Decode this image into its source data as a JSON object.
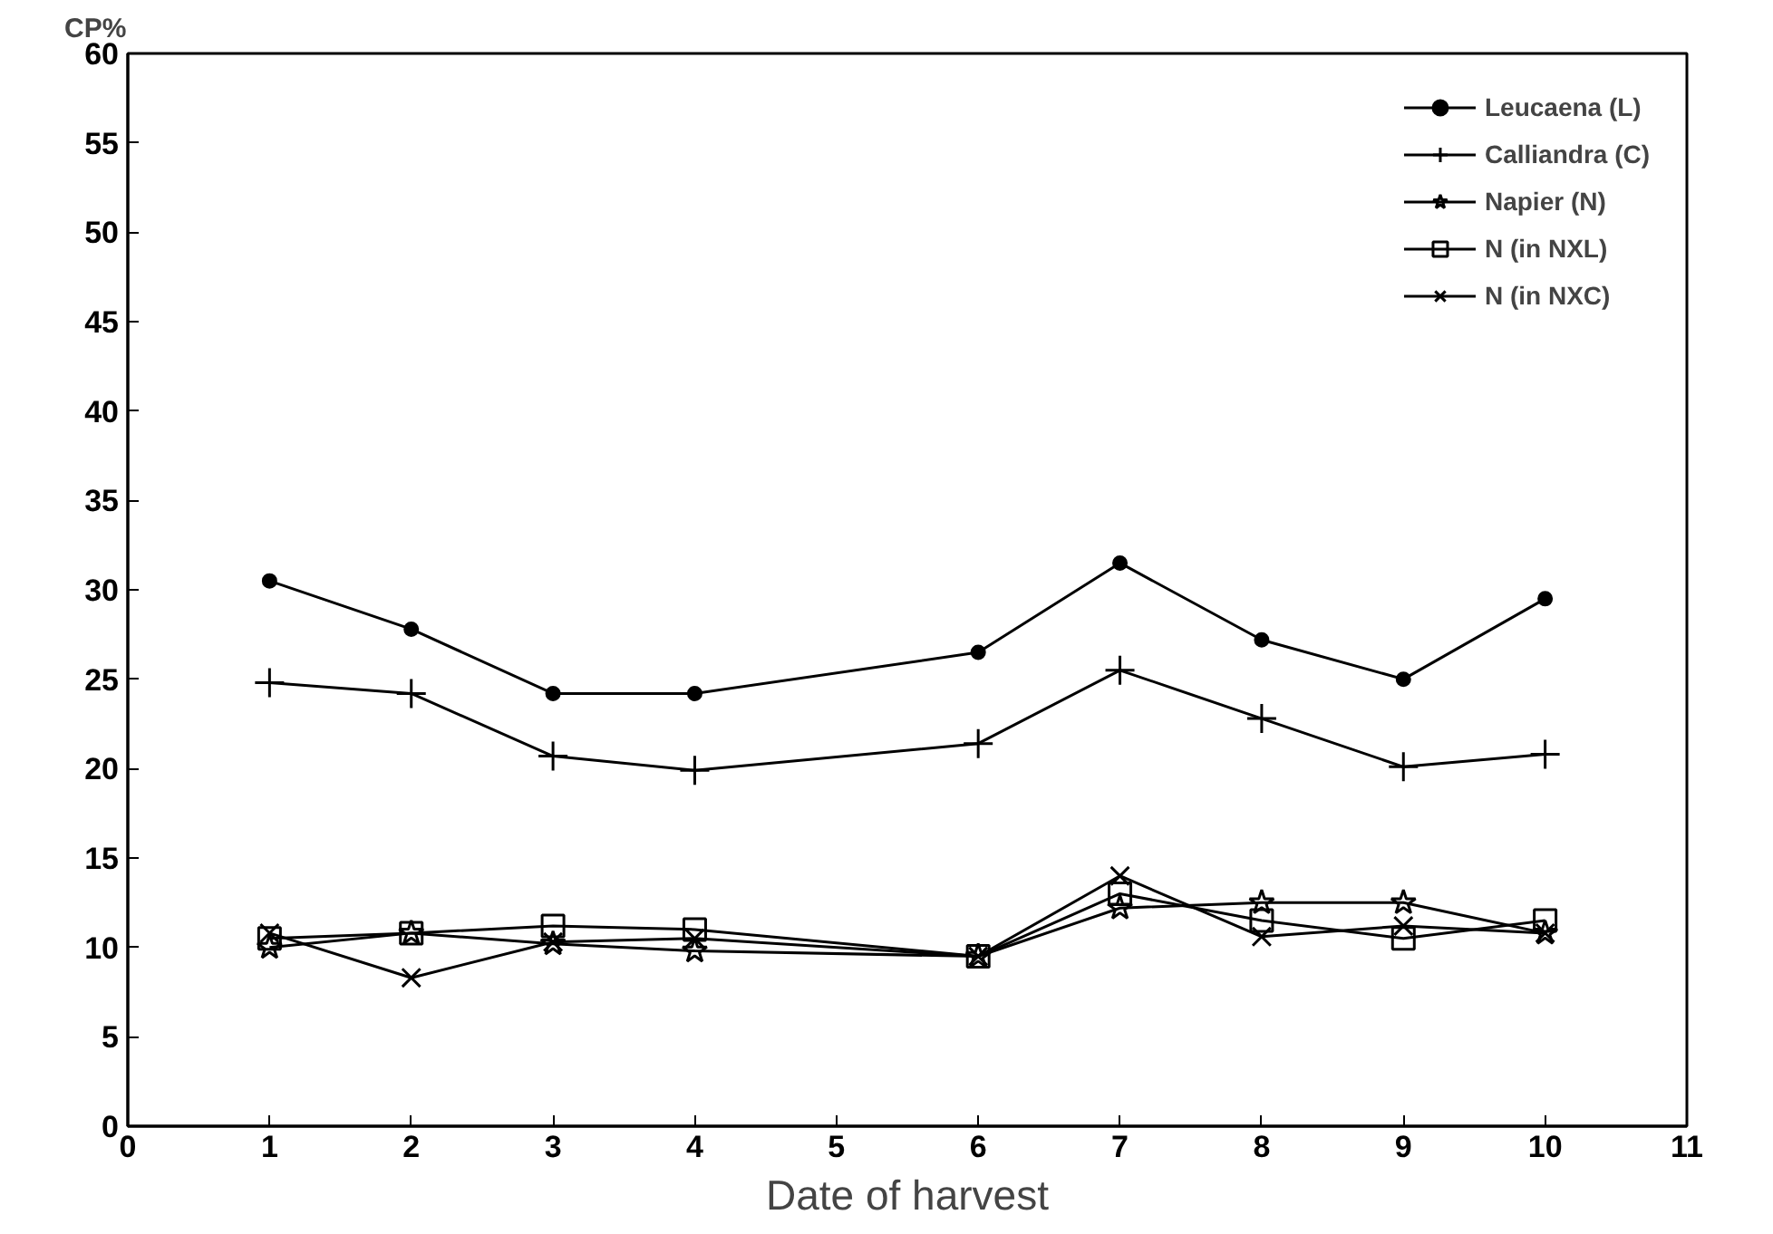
{
  "chart_data": {
    "type": "line",
    "xlabel": "Date of harvest",
    "ylabel": "CP%",
    "x": [
      1,
      2,
      3,
      4,
      6,
      7,
      8,
      9,
      10
    ],
    "xlim": [
      0,
      11
    ],
    "xticks": [
      0,
      1,
      2,
      3,
      4,
      5,
      6,
      7,
      8,
      9,
      10,
      11
    ],
    "ylim": [
      0,
      60
    ],
    "yticks": [
      0,
      5,
      10,
      15,
      20,
      25,
      30,
      35,
      40,
      45,
      50,
      55,
      60
    ],
    "grid": false,
    "legend": "top right",
    "line_style": "solid",
    "series": [
      {
        "name": "Leucaena (L)",
        "color": "#000000",
        "marker": "circle",
        "values": [
          30.5,
          27.8,
          24.2,
          24.2,
          26.5,
          31.5,
          27.2,
          25.0,
          29.5
        ]
      },
      {
        "name": "Calliandra (C)",
        "color": "#000000",
        "marker": "cross",
        "values": [
          24.8,
          24.2,
          20.7,
          19.9,
          21.4,
          25.5,
          22.8,
          20.1,
          20.8
        ]
      },
      {
        "name": "Napier (N)",
        "color": "#000000",
        "marker": "star",
        "values": [
          10.0,
          10.8,
          10.2,
          9.8,
          9.5,
          12.2,
          12.5,
          12.5,
          10.8
        ]
      },
      {
        "name": "N (in NXL)",
        "color": "#000000",
        "marker": "square",
        "values": [
          10.5,
          10.8,
          11.2,
          11.0,
          9.5,
          13.0,
          11.5,
          10.5,
          11.5
        ]
      },
      {
        "name": "N (in NXC)",
        "color": "#000000",
        "marker": "x",
        "values": [
          10.8,
          8.3,
          10.3,
          10.5,
          9.5,
          14.0,
          10.6,
          11.2,
          10.8
        ]
      }
    ]
  }
}
